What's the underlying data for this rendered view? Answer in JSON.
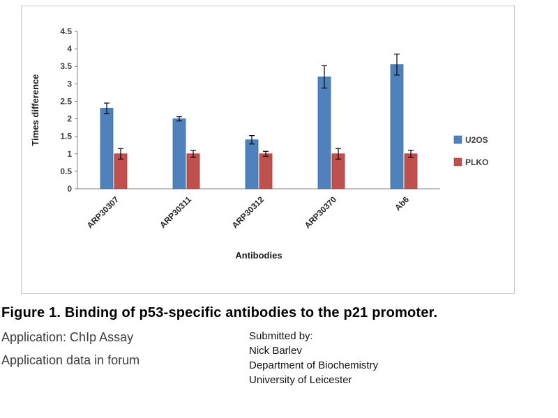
{
  "chart_data": {
    "type": "bar",
    "categories": [
      "ARP30307",
      "ARP30311",
      "ARP30312",
      "ARP30370",
      "Ab6"
    ],
    "series": [
      {
        "name": "U2OS",
        "color": "#4F81BD",
        "edge": "#3A6AA0",
        "values": [
          2.3,
          2.0,
          1.4,
          3.2,
          3.55
        ],
        "errors": [
          0.15,
          0.06,
          0.12,
          0.32,
          0.3
        ]
      },
      {
        "name": "PLKO",
        "color": "#C0504D",
        "edge": "#9E3B39",
        "values": [
          1.0,
          1.0,
          1.0,
          1.0,
          1.0
        ],
        "errors": [
          0.15,
          0.1,
          0.07,
          0.15,
          0.1
        ]
      }
    ],
    "title": "",
    "xlabel": "Antibodies",
    "ylabel": "Times difference",
    "ylim": [
      0,
      4.5
    ],
    "ytick_step": 0.5,
    "grid": false,
    "legend_position": "right",
    "error_bar_color": "#000000",
    "axis_color": "#808080"
  },
  "caption": "Figure 1. Binding of p53-specific antibodies to the p21 promoter.",
  "application": {
    "line1": "Application: ChIp Assay",
    "line2": "Application data in forum"
  },
  "submitted": {
    "heading": "Submitted by:",
    "name": "Nick Barlev",
    "department": "Department of Biochemistry",
    "institution": "University of Leicester"
  }
}
